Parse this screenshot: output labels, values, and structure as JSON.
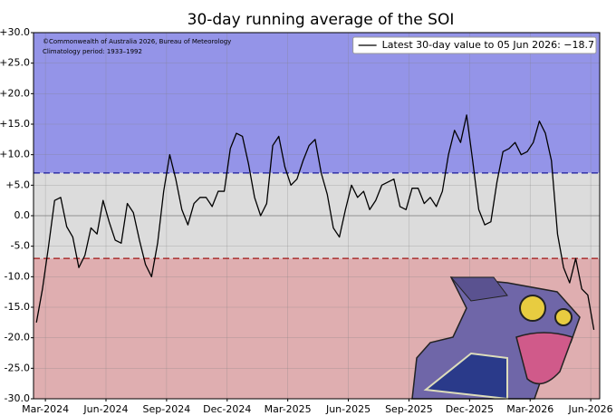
{
  "chart_data": {
    "type": "line",
    "title": "30-day running average of the SOI",
    "annotations": [
      "©Commonwealth of Australia 2026, Bureau of Meteorology",
      "Climatology period: 1933–1992"
    ],
    "legend": "upper right",
    "grid": true,
    "regions": [
      {
        "from": 7,
        "to": 30,
        "color": "#9494e8"
      },
      {
        "from": -7,
        "to": 7,
        "color": "#dcdcdc"
      },
      {
        "from": -30,
        "to": -7,
        "color": "#dfaeb0"
      }
    ],
    "thresholds": [
      {
        "value": 7,
        "color": "#1a1a9a"
      },
      {
        "value": -7,
        "color": "#a01515"
      }
    ],
    "xlim": [
      2024.118,
      2026.454
    ],
    "ylim": [
      -30,
      30
    ],
    "xticks": [
      {
        "value": 2024.167,
        "label": "Mar-2024"
      },
      {
        "value": 2024.417,
        "label": "Jun-2024"
      },
      {
        "value": 2024.667,
        "label": "Sep-2024"
      },
      {
        "value": 2024.917,
        "label": "Dec-2024"
      },
      {
        "value": 2025.167,
        "label": "Mar-2025"
      },
      {
        "value": 2025.417,
        "label": "Jun-2025"
      },
      {
        "value": 2025.667,
        "label": "Sep-2025"
      },
      {
        "value": 2025.917,
        "label": "Dec-2025"
      },
      {
        "value": 2026.167,
        "label": "Mar-2026"
      },
      {
        "value": 2026.417,
        "label": "Jun-2026"
      }
    ],
    "yticks": [
      {
        "value": 30,
        "label": "+30.0"
      },
      {
        "value": 25,
        "label": "+25.0"
      },
      {
        "value": 20,
        "label": "+20.0"
      },
      {
        "value": 15,
        "label": "+15.0"
      },
      {
        "value": 10,
        "label": "+10.0"
      },
      {
        "value": 5,
        "label": "+5.0"
      },
      {
        "value": 0,
        "label": "0.0"
      },
      {
        "value": -5,
        "label": "-5.0"
      },
      {
        "value": -10,
        "label": "-10.0"
      },
      {
        "value": -15,
        "label": "-15.0"
      },
      {
        "value": -20,
        "label": "-20.0"
      },
      {
        "value": -25,
        "label": "-25.0"
      },
      {
        "value": -30,
        "label": "-30.0"
      }
    ],
    "x": [
      2024.13,
      2024.155,
      2024.18,
      2024.205,
      2024.23,
      2024.255,
      2024.28,
      2024.305,
      2024.33,
      2024.355,
      2024.38,
      2024.405,
      2024.43,
      2024.455,
      2024.48,
      2024.505,
      2024.53,
      2024.555,
      2024.58,
      2024.605,
      2024.63,
      2024.655,
      2024.68,
      2024.705,
      2024.73,
      2024.755,
      2024.78,
      2024.805,
      2024.83,
      2024.855,
      2024.88,
      2024.905,
      2024.93,
      2024.955,
      2024.98,
      2025.005,
      2025.03,
      2025.055,
      2025.08,
      2025.105,
      2025.13,
      2025.155,
      2025.18,
      2025.205,
      2025.23,
      2025.255,
      2025.28,
      2025.305,
      2025.33,
      2025.355,
      2025.38,
      2025.405,
      2025.43,
      2025.455,
      2025.48,
      2025.505,
      2025.53,
      2025.555,
      2025.58,
      2025.605,
      2025.63,
      2025.655,
      2025.68,
      2025.705,
      2025.73,
      2025.755,
      2025.78,
      2025.805,
      2025.83,
      2025.855,
      2025.88,
      2025.905,
      2025.93,
      2025.955,
      2025.98,
      2026.005,
      2026.03,
      2026.055,
      2026.08,
      2026.105,
      2026.13,
      2026.155,
      2026.18,
      2026.205,
      2026.23,
      2026.255,
      2026.28,
      2026.305,
      2026.33,
      2026.355,
      2026.38,
      2026.405,
      2026.43
    ],
    "series": [
      {
        "name": "Latest 30-day value to 05 Jun 2026: −18.7",
        "color": "#000000",
        "values": [
          -17.5,
          -12,
          -5,
          2.5,
          3,
          -1.8,
          -3.5,
          -8.5,
          -6.5,
          -2,
          -3,
          2.5,
          -1,
          -4,
          -4.5,
          2,
          0.5,
          -4,
          -8,
          -10,
          -4.5,
          4,
          10,
          6,
          1,
          -1.5,
          2,
          3,
          3,
          1.5,
          4,
          4,
          11,
          13.5,
          13,
          8.5,
          3,
          0,
          2,
          11.5,
          13,
          8,
          5,
          6,
          9,
          11.5,
          12.5,
          7,
          3.5,
          -2,
          -3.5,
          1,
          5,
          3,
          4,
          1,
          2.5,
          5,
          5.5,
          6,
          1.5,
          1,
          4.5,
          4.5,
          2,
          3,
          1.5,
          4,
          10,
          14,
          12,
          16.5,
          9,
          1,
          -1.5,
          -1,
          5.5,
          10.5,
          11,
          12,
          10,
          10.5,
          12,
          15.5,
          13.5,
          9,
          -3,
          -8.5,
          -11,
          -7,
          -12,
          -13,
          -18.7
        ]
      }
    ]
  }
}
